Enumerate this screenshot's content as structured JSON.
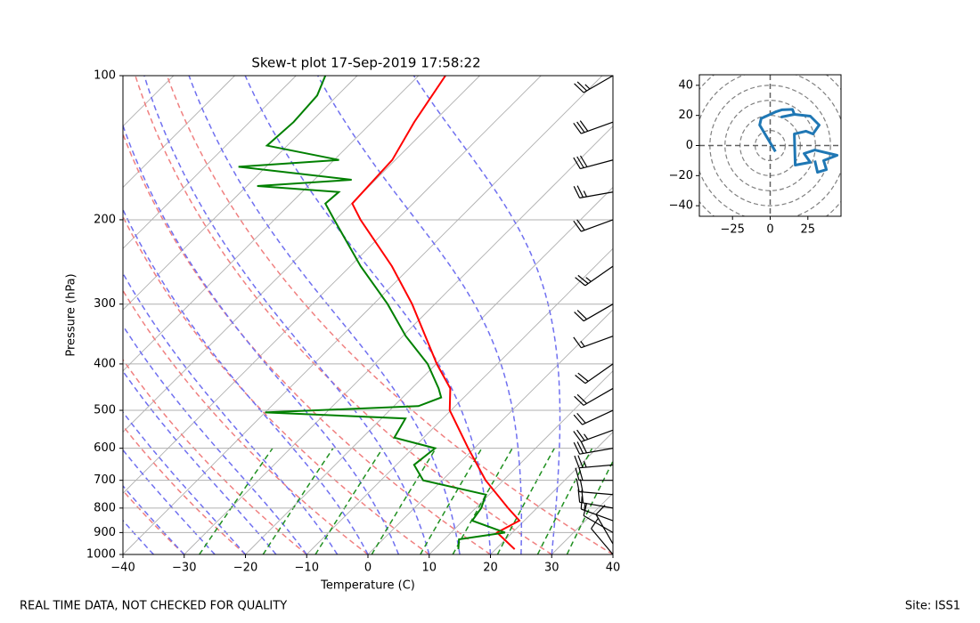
{
  "chart_data": [
    {
      "type": "skewt",
      "title": "Skew-t plot 17-Sep-2019 17:58:22",
      "xlabel": "Temperature (C)",
      "ylabel": "Pressure (hPa)",
      "xlim": [
        -40,
        40
      ],
      "ylim": [
        1000,
        100
      ],
      "yscale": "log",
      "grid": true,
      "xticks": [
        {
          "value": -40,
          "label": "−40"
        },
        {
          "value": -30,
          "label": "−30"
        },
        {
          "value": -20,
          "label": "−20"
        },
        {
          "value": -10,
          "label": "−10"
        },
        0,
        10,
        20,
        30,
        40
      ],
      "yticks": [
        100,
        200,
        300,
        400,
        500,
        600,
        700,
        800,
        900,
        1000
      ],
      "series": [
        {
          "color": "#ff0000",
          "pressure": [
            975,
            900,
            850,
            800,
            700,
            600,
            500,
            450,
            400,
            300,
            250,
            200,
            185,
            150,
            125,
            100
          ],
          "values": [
            23.1,
            17.5,
            19.2,
            15.3,
            7.1,
            -1.0,
            -10.2,
            -13.7,
            -19.9,
            -33.7,
            -43.2,
            -55.9,
            -59.9,
            -60.5,
            -63.1,
            -65.6
          ]
        },
        {
          "color": "#008000",
          "pressure": [
            975,
            930,
            900,
            850,
            800,
            750,
            700,
            650,
            600,
            570,
            520,
            505,
            490,
            470,
            450,
            400,
            350,
            300,
            250,
            200,
            185,
            175,
            170,
            165,
            155,
            150,
            140,
            125,
            110,
            100
          ],
          "values": [
            13.9,
            12.4,
            18.8,
            11.5,
            10.9,
            9.5,
            -3.1,
            -7.1,
            -6.4,
            -14.8,
            -16.1,
            -40.0,
            -16.0,
            -13.7,
            -15.6,
            -21.4,
            -29.5,
            -37.7,
            -48.3,
            -60.2,
            -64.3,
            -64.0,
            -78.3,
            -63.9,
            -84.5,
            -69.2,
            -83.3,
            -82.8,
            -83.3,
            -85.2
          ]
        }
      ],
      "wind": {
        "pressure": [
          1000,
          950,
          900,
          850,
          800,
          750,
          700,
          650,
          600,
          550,
          500,
          450,
          400,
          350,
          300,
          250,
          200,
          175,
          150,
          125,
          100
        ],
        "speed": [
          8,
          10,
          12,
          15,
          18,
          20,
          22,
          25,
          28,
          25,
          22,
          18,
          20,
          15,
          20,
          25,
          22,
          25,
          30,
          28,
          25
        ],
        "direction": [
          320,
          330,
          300,
          290,
          280,
          275,
          270,
          265,
          260,
          250,
          245,
          240,
          235,
          250,
          240,
          235,
          250,
          260,
          255,
          250,
          240
        ]
      }
    },
    {
      "type": "hodograph",
      "color": "#1f77b4",
      "xlim": [
        -47,
        47
      ],
      "ylim": [
        -47,
        47
      ],
      "xticks": [
        {
          "value": -25,
          "label": "−25"
        },
        0,
        25
      ],
      "yticks": [
        {
          "value": -40,
          "label": "−40"
        },
        {
          "value": -20,
          "label": "−20"
        },
        0,
        20,
        40
      ],
      "u": [
        3.5,
        -7,
        -6,
        4,
        7.7,
        14.8,
        16,
        7.7,
        16,
        26.6,
        32.5,
        28.4,
        23.7,
        16,
        16.6,
        26.6,
        22.5,
        29.6,
        44.4,
        35.5,
        37.3,
        31.4,
        29.6
      ],
      "v": [
        -4,
        13.6,
        18,
        22.5,
        23.7,
        24,
        20.7,
        19,
        20.7,
        19.5,
        13.6,
        7.7,
        9.5,
        7.7,
        -13,
        -11.2,
        -5.3,
        -3,
        -6.5,
        -10,
        -16,
        -17.8,
        -10
      ]
    }
  ],
  "footer": {
    "left": "REAL TIME DATA, NOT CHECKED FOR QUALITY",
    "right": "Site: ISS1"
  }
}
